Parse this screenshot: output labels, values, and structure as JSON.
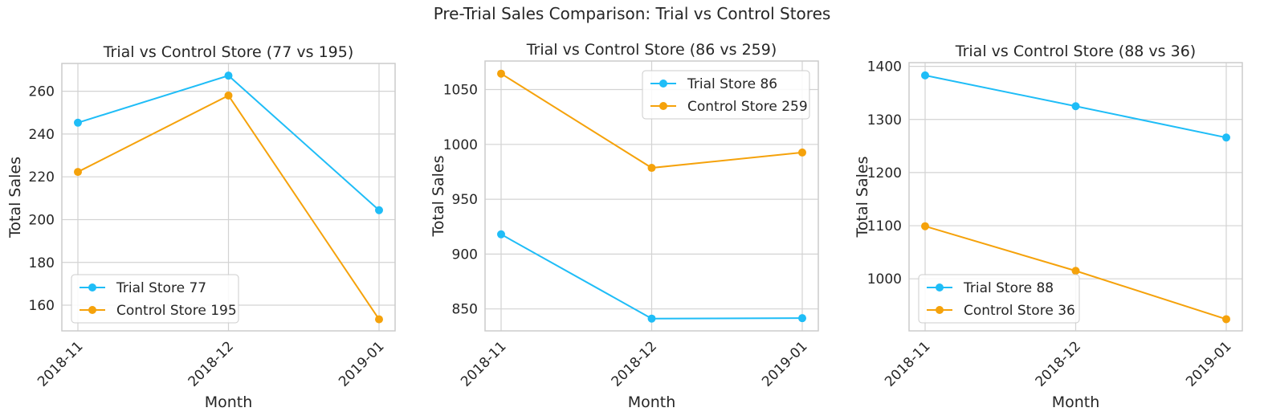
{
  "figure": {
    "title": "Pre-Trial Sales Comparison: Trial vs Control Stores"
  },
  "colors": {
    "trial": "#1fbdf7",
    "control": "#f5a20b",
    "grid": "#d3d3d3",
    "axes": "#cccccc"
  },
  "chart_data": [
    {
      "type": "line",
      "title": "Trial vs Control Store (77 vs 195)",
      "xlabel": "Month",
      "ylabel": "Total Sales",
      "categories": [
        "2018-11",
        "2018-12",
        "2019-01"
      ],
      "ylim": [
        148,
        273
      ],
      "yticks": [
        160,
        180,
        200,
        220,
        240,
        260
      ],
      "ytick_labels": [
        "160",
        "180",
        "200",
        "220",
        "240",
        "260"
      ],
      "legend_position": "lower-left",
      "grid": true,
      "series": [
        {
          "name": "Trial Store 77",
          "values": [
            245.3,
            267.3,
            204.4
          ]
        },
        {
          "name": "Control Store 195",
          "values": [
            222.3,
            258.0,
            153.4
          ]
        }
      ]
    },
    {
      "type": "line",
      "title": "Trial vs Control Store (86 vs 259)",
      "xlabel": "Month",
      "ylabel": "Total Sales",
      "categories": [
        "2018-11",
        "2018-12",
        "2019-01"
      ],
      "ylim": [
        830,
        1076
      ],
      "yticks": [
        850,
        900,
        950,
        1000,
        1050
      ],
      "ytick_labels": [
        "850",
        "900",
        "950",
        "1000",
        "1050"
      ],
      "legend_position": "upper-right",
      "grid": true,
      "series": [
        {
          "name": "Trial Store 86",
          "values": [
            918,
            841.2,
            841.6
          ]
        },
        {
          "name": "Control Store 259",
          "values": [
            1064.5,
            978.6,
            992.6
          ]
        }
      ]
    },
    {
      "type": "line",
      "title": "Trial vs Control Store (88 vs 36)",
      "xlabel": "Month",
      "ylabel": "Total Sales",
      "categories": [
        "2018-11",
        "2018-12",
        "2019-01"
      ],
      "ylim": [
        902,
        1407
      ],
      "yticks": [
        1000,
        1100,
        1200,
        1300,
        1400
      ],
      "ytick_labels": [
        "1000",
        "1100",
        "1200",
        "1300",
        "1400"
      ],
      "legend_position": "lower-left",
      "grid": true,
      "series": [
        {
          "name": "Trial Store 88",
          "values": [
            1383,
            1325,
            1266
          ]
        },
        {
          "name": "Control Store 36",
          "values": [
            1099,
            1015,
            924
          ]
        }
      ]
    }
  ]
}
